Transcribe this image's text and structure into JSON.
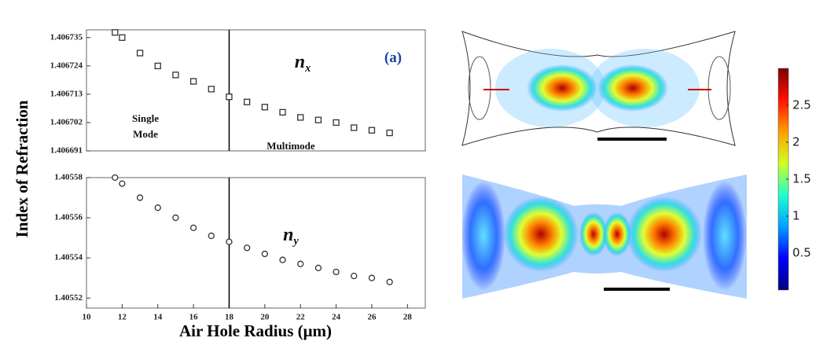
{
  "chart_data": [
    {
      "type": "scatter",
      "marker": "square",
      "color": "#333333",
      "ylabel": "Index of Refraction",
      "x": [
        11.6,
        12,
        13,
        14,
        15,
        16,
        17,
        18,
        19,
        20,
        21,
        22,
        23,
        24,
        25,
        26,
        27
      ],
      "values": [
        1.406737,
        1.406735,
        1.406729,
        1.406724,
        1.4067205,
        1.406718,
        1.406715,
        1.406712,
        1.40671,
        1.406708,
        1.406706,
        1.406704,
        1.406703,
        1.406702,
        1.4067,
        1.406699,
        1.406698
      ],
      "xlim": [
        10,
        29
      ],
      "ylim": [
        1.406691,
        1.406738
      ],
      "yticks": [
        1.406691,
        1.406702,
        1.406713,
        1.406724,
        1.406735
      ],
      "vline": 18,
      "annotations": [
        {
          "text": "(a)"
        },
        {
          "text": "n",
          "sub": "x"
        },
        {
          "text": "Single"
        },
        {
          "text": "Mode"
        },
        {
          "text": "Multimode"
        }
      ]
    },
    {
      "type": "scatter",
      "marker": "circle",
      "color": "#333333",
      "xlabel": "Air Hole Radius (μm)",
      "x": [
        11.6,
        12,
        13,
        14,
        15,
        16,
        17,
        18,
        19,
        20,
        21,
        22,
        23,
        24,
        25,
        26,
        27
      ],
      "values": [
        1.40558,
        1.405577,
        1.40557,
        1.405565,
        1.40556,
        1.405555,
        1.405551,
        1.405548,
        1.405545,
        1.405542,
        1.405539,
        1.405537,
        1.405535,
        1.405533,
        1.405531,
        1.40553,
        1.405528
      ],
      "xlim": [
        10,
        29
      ],
      "ylim": [
        1.405515,
        1.40558
      ],
      "xticks": [
        10,
        12,
        14,
        16,
        18,
        20,
        22,
        24,
        26,
        28
      ],
      "yticks": [
        1.40552,
        1.40554,
        1.40556,
        1.40558
      ],
      "vline": 18,
      "annotations": [
        {
          "text": "n",
          "sub": "y"
        }
      ]
    },
    {
      "type": "colorbar",
      "ylim": [
        0,
        3
      ],
      "yticks": [
        0.5,
        1,
        1.5,
        2,
        2.5
      ],
      "colors": [
        "#00007f",
        "#0000ff",
        "#00a0ff",
        "#20ffd0",
        "#d0ff20",
        "#ffa000",
        "#ff1000",
        "#7f0000"
      ]
    }
  ]
}
